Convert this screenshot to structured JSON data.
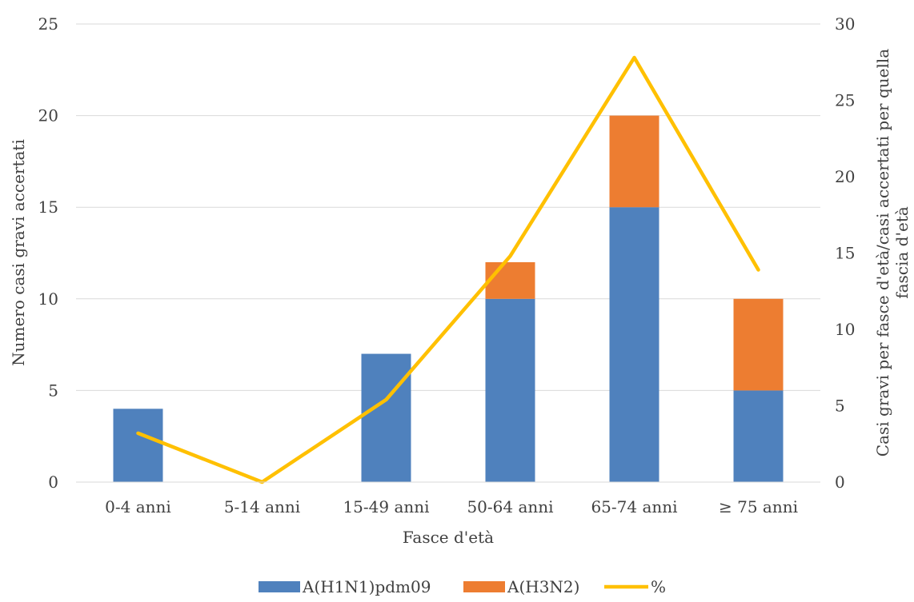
{
  "chart_data": {
    "type": "bar",
    "stacked": true,
    "categories": [
      "0-4 anni",
      "5-14 anni",
      "15-49 anni",
      "50-64 anni",
      "65-74 anni",
      "≥ 75 anni"
    ],
    "series": [
      {
        "name": "A(H1N1)pdm09",
        "type": "bar",
        "axis": "left",
        "color": "#4F81BD",
        "values": [
          4,
          0,
          7,
          10,
          15,
          5
        ]
      },
      {
        "name": "A(H3N2)",
        "type": "bar",
        "axis": "left",
        "color": "#ED7D31",
        "values": [
          0,
          0,
          0,
          2,
          5,
          5
        ]
      },
      {
        "name": "%",
        "type": "line",
        "axis": "right",
        "color": "#FFC000",
        "values": [
          3.2,
          0,
          5.4,
          14.8,
          27.8,
          13.9
        ]
      }
    ],
    "xlabel": "Fasce d'età",
    "ylabel": "Numero casi gravi accertati",
    "y2label_line1": "Casi gravi per fasce d'età/casi accertati per quella",
    "y2label_line2": "fascia d'età",
    "ylim": [
      0,
      25
    ],
    "yticks": [
      0,
      5,
      10,
      15,
      20,
      25
    ],
    "y2lim": [
      0,
      30
    ],
    "y2ticks": [
      0,
      5,
      10,
      15,
      20,
      25,
      30
    ],
    "grid": true,
    "legend_position": "bottom"
  }
}
